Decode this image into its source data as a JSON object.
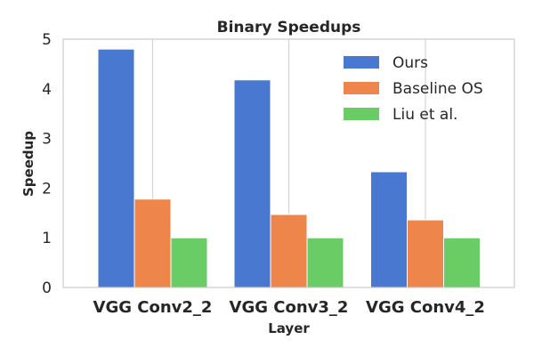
{
  "chart_data": {
    "type": "bar",
    "title": "Binary Speedups",
    "xlabel": "Layer",
    "ylabel": "Speedup",
    "categories": [
      "VGG Conv2_2",
      "VGG Conv3_2",
      "VGG Conv4_2"
    ],
    "series": [
      {
        "name": "Ours",
        "values": [
          4.8,
          4.18,
          2.33
        ],
        "color": "#4878d0"
      },
      {
        "name": "Baseline OS",
        "values": [
          1.78,
          1.47,
          1.36
        ],
        "color": "#ee854a"
      },
      {
        "name": "Liu et al.",
        "values": [
          1.0,
          1.0,
          1.0
        ],
        "color": "#6acc64"
      }
    ],
    "ylim": [
      0,
      5
    ],
    "yticks": [
      "0",
      "1",
      "2",
      "3",
      "4",
      "5"
    ],
    "grid": true,
    "legend_position": "top-right"
  }
}
